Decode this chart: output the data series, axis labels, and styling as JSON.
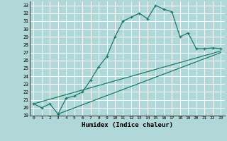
{
  "title": "",
  "xlabel": "Humidex (Indice chaleur)",
  "background_color": "#b0d8d8",
  "grid_color": "#ffffff",
  "line_color": "#1a7a6a",
  "xlim": [
    -0.5,
    23.5
  ],
  "ylim": [
    19,
    33.5
  ],
  "xticks": [
    0,
    1,
    2,
    3,
    4,
    5,
    6,
    7,
    8,
    9,
    10,
    11,
    12,
    13,
    14,
    15,
    16,
    17,
    18,
    19,
    20,
    21,
    22,
    23
  ],
  "yticks": [
    19,
    20,
    21,
    22,
    23,
    24,
    25,
    26,
    27,
    28,
    29,
    30,
    31,
    32,
    33
  ],
  "curve1_x": [
    0,
    1,
    2,
    3,
    4,
    5,
    6,
    7,
    8,
    9,
    10,
    11,
    12,
    13,
    14,
    15,
    16,
    17,
    18,
    19,
    20,
    21,
    22,
    23
  ],
  "curve1_y": [
    20.5,
    20.0,
    20.5,
    19.2,
    21.2,
    21.5,
    22.0,
    23.5,
    25.2,
    26.5,
    29.0,
    31.0,
    31.5,
    32.0,
    31.3,
    33.0,
    32.5,
    32.2,
    29.0,
    29.5,
    27.5,
    27.5,
    27.6,
    27.5
  ],
  "line2_x": [
    0,
    23
  ],
  "line2_y": [
    20.5,
    27.2
  ],
  "line3_x": [
    3,
    23
  ],
  "line3_y": [
    19.2,
    27.0
  ]
}
